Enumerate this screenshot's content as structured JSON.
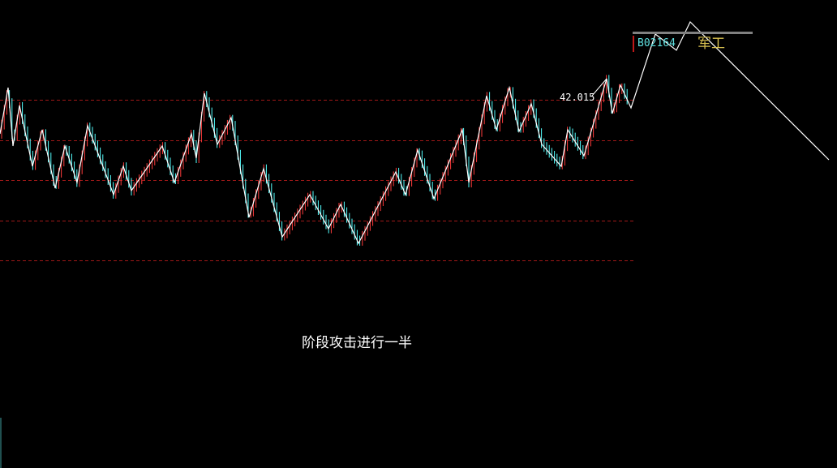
{
  "stock": {
    "code": "B02164",
    "sector": "军工",
    "price_label": 42.015
  },
  "annotation": "阶段攻击进行一半"
}
